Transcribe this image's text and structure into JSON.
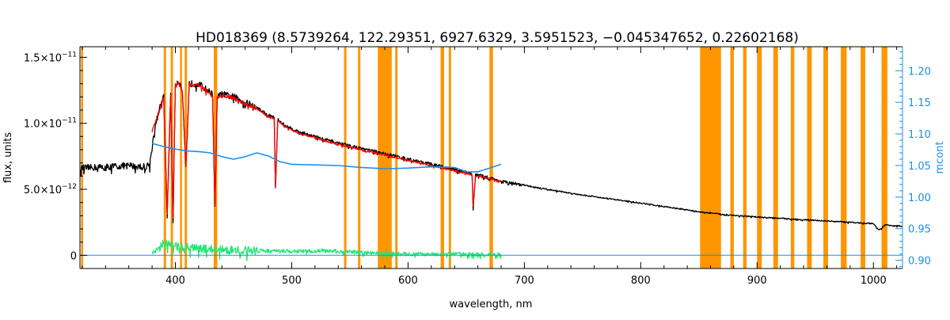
{
  "chart_data": {
    "type": "line",
    "title": "HD018369   (8.5739264, 122.29351, 6927.6329, 3.5951523, −0.045347652, 0.22602168)",
    "xlabel": "wavelength, nm",
    "ylabel": "flux, units",
    "y2label": "mcont",
    "xlim": [
      318,
      1025
    ],
    "ylim": [
      -1e-12,
      1.58e-11
    ],
    "y2lim": [
      0.887,
      1.238
    ],
    "x_ticks": [
      400,
      500,
      600,
      700,
      800,
      900,
      1000
    ],
    "x_tick_labels": [
      "400",
      "500",
      "600",
      "700",
      "800",
      "900",
      "1000"
    ],
    "y_ticks": [
      0,
      5e-12,
      1e-11,
      1.5e-11
    ],
    "y_tick_labels": [
      {
        "mantissa": "0",
        "exponent": ""
      },
      {
        "mantissa": "5.0×10",
        "exponent": "−12"
      },
      {
        "mantissa": "1.0×10",
        "exponent": "−11"
      },
      {
        "mantissa": "1.5×10",
        "exponent": "−11"
      }
    ],
    "y2_ticks": [
      0.9,
      0.95,
      1.0,
      1.05,
      1.1,
      1.15,
      1.2
    ],
    "y2_tick_labels": [
      "0.90",
      "0.95",
      "1.00",
      "1.05",
      "1.10",
      "1.15",
      "1.20"
    ],
    "masked_regions": [
      [
        319,
        320
      ],
      [
        390,
        392
      ],
      [
        396,
        398
      ],
      [
        404,
        405
      ],
      [
        408,
        410
      ],
      [
        433,
        436
      ],
      [
        545,
        547
      ],
      [
        557,
        559
      ],
      [
        574,
        586
      ],
      [
        589,
        591
      ],
      [
        628,
        631
      ],
      [
        635,
        637
      ],
      [
        670,
        673
      ],
      [
        851,
        869
      ],
      [
        877,
        880
      ],
      [
        888,
        891
      ],
      [
        900,
        904
      ],
      [
        914,
        918
      ],
      [
        929,
        932
      ],
      [
        943,
        947
      ],
      [
        957,
        961
      ],
      [
        972,
        977
      ],
      [
        989,
        993
      ],
      [
        1007,
        1012
      ]
    ],
    "series": [
      {
        "key": "observed",
        "color": "#000000",
        "noise": 2.5e-13,
        "x": [
          318,
          340,
          360,
          372,
          378,
          382,
          386,
          390,
          393,
          396,
          398,
          400,
          403,
          406,
          409,
          412,
          420,
          432,
          434,
          436,
          440,
          450,
          460,
          470,
          480,
          485,
          486,
          488,
          495,
          505,
          520,
          540,
          560,
          580,
          600,
          620,
          640,
          655,
          656,
          658,
          665,
          680,
          700,
          740,
          780,
          820,
          850,
          870,
          900,
          940,
          980,
          1000,
          1005,
          1010,
          1025
        ],
        "y": [
          6.6e-12,
          6.7e-12,
          6.8e-12,
          6.7e-12,
          6.9e-12,
          9.5e-12,
          1.1e-11,
          1.2e-11,
          3e-12,
          1.25e-11,
          2.5e-12,
          1.3e-11,
          1.32e-11,
          1.25e-11,
          6.5e-12,
          1.3e-11,
          1.3e-11,
          1.22e-11,
          3.5e-12,
          1.2e-11,
          1.22e-11,
          1.2e-11,
          1.16e-11,
          1.12e-11,
          1.06e-11,
          1.05e-11,
          5e-12,
          1.03e-11,
          9.8e-12,
          9.4e-12,
          9e-12,
          8.5e-12,
          8.1e-12,
          7.7e-12,
          7.3e-12,
          6.9e-12,
          6.5e-12,
          6.2e-12,
          3.5e-12,
          6.1e-12,
          6e-12,
          5.6e-12,
          5.3e-12,
          4.7e-12,
          4.2e-12,
          3.7e-12,
          3.3e-12,
          3.1e-12,
          2.9e-12,
          2.7e-12,
          2.5e-12,
          2.4e-12,
          1.9e-12,
          2.3e-12,
          2.2e-12
        ]
      },
      {
        "key": "model",
        "color": "#ff0000",
        "noise": 1.5e-13,
        "x": [
          380,
          386,
          390,
          393,
          396,
          398,
          400,
          403,
          406,
          409,
          412,
          420,
          432,
          434,
          436,
          440,
          450,
          460,
          470,
          480,
          485,
          486,
          488,
          495,
          505,
          520,
          540,
          560,
          580,
          600,
          620,
          640,
          655,
          656,
          658,
          665,
          680
        ],
        "y": [
          9.3e-12,
          1.09e-11,
          1.19e-11,
          3.2e-12,
          1.24e-11,
          2.7e-12,
          1.29e-11,
          1.31e-11,
          1.24e-11,
          6.7e-12,
          1.29e-11,
          1.29e-11,
          1.21e-11,
          3.7e-12,
          1.19e-11,
          1.21e-11,
          1.19e-11,
          1.15e-11,
          1.11e-11,
          1.05e-11,
          1.04e-11,
          5.2e-12,
          1.02e-11,
          9.7e-12,
          9.3e-12,
          8.9e-12,
          8.4e-12,
          8e-12,
          7.6e-12,
          7.2e-12,
          6.8e-12,
          6.4e-12,
          6.1e-12,
          3.7e-12,
          6e-12,
          5.9e-12,
          5.6e-12
        ]
      },
      {
        "key": "mcont",
        "color": "#1e8fe6",
        "axis": "right",
        "noise": 0,
        "x": [
          380,
          390,
          400,
          410,
          420,
          430,
          440,
          450,
          460,
          470,
          480,
          490,
          500,
          520,
          540,
          560,
          580,
          600,
          620,
          640,
          650,
          660,
          670,
          680
        ],
        "y": [
          1.085,
          1.08,
          1.076,
          1.073,
          1.072,
          1.07,
          1.064,
          1.06,
          1.064,
          1.07,
          1.065,
          1.056,
          1.052,
          1.051,
          1.05,
          1.047,
          1.045,
          1.046,
          1.048,
          1.047,
          1.04,
          1.04,
          1.046,
          1.052
        ]
      },
      {
        "key": "residual",
        "color": "#22e873",
        "noise": 3.2e-13,
        "x": [
          380,
          390,
          400,
          420,
          450,
          500,
          530,
          560,
          600,
          640,
          680
        ],
        "y": [
          3e-13,
          9e-13,
          7e-13,
          5e-13,
          4e-13,
          3e-13,
          3.5e-13,
          2e-13,
          1e-13,
          1e-13,
          5e-14
        ]
      },
      {
        "key": "baseline",
        "color": "#1e8fe6",
        "noise": 0,
        "x": [
          318,
          1025
        ],
        "y": [
          0,
          0
        ]
      }
    ],
    "colors": {
      "masked": "#ff9500",
      "axis": "#000000",
      "right_axis": "#1e8fe6"
    }
  }
}
